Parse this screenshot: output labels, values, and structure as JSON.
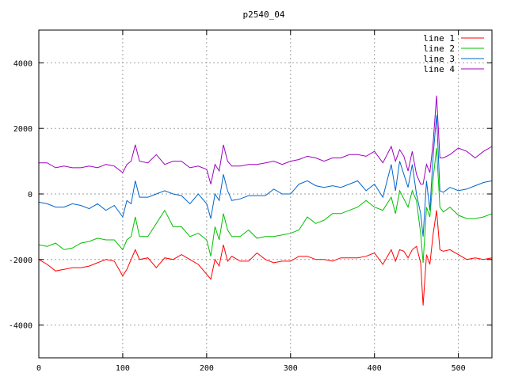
{
  "chart_data": {
    "type": "line",
    "title": "p2540_04",
    "xlabel": "",
    "ylabel": "",
    "xlim": [
      0,
      540
    ],
    "ylim": [
      -5000,
      5000
    ],
    "xticks": [
      0,
      100,
      200,
      300,
      400,
      500
    ],
    "yticks": [
      -4000,
      -2000,
      0,
      2000,
      4000
    ],
    "grid": true,
    "legend_position": "top-right",
    "x": [
      0,
      10,
      20,
      30,
      40,
      50,
      60,
      70,
      80,
      90,
      100,
      105,
      110,
      115,
      120,
      130,
      140,
      150,
      160,
      170,
      180,
      190,
      200,
      205,
      210,
      215,
      220,
      225,
      230,
      240,
      250,
      260,
      270,
      280,
      290,
      300,
      310,
      320,
      330,
      340,
      350,
      360,
      370,
      380,
      390,
      400,
      410,
      420,
      425,
      430,
      435,
      440,
      445,
      450,
      455,
      458,
      462,
      466,
      470,
      474,
      478,
      482,
      490,
      500,
      510,
      520,
      530,
      540
    ],
    "series": [
      {
        "name": "line 1",
        "color": "#ff0000",
        "values": [
          -2000,
          -2150,
          -2350,
          -2300,
          -2250,
          -2250,
          -2200,
          -2100,
          -2000,
          -2050,
          -2500,
          -2300,
          -2000,
          -1700,
          -2000,
          -1950,
          -2250,
          -1950,
          -2000,
          -1850,
          -2000,
          -2150,
          -2450,
          -2600,
          -2000,
          -2200,
          -1550,
          -2050,
          -1900,
          -2050,
          -2050,
          -1800,
          -2000,
          -2100,
          -2050,
          -2050,
          -1900,
          -1900,
          -2000,
          -2000,
          -2050,
          -1950,
          -1950,
          -1950,
          -1900,
          -1800,
          -2150,
          -1700,
          -2050,
          -1700,
          -1750,
          -1950,
          -1700,
          -1600,
          -2100,
          -3400,
          -1850,
          -2150,
          -1200,
          -500,
          -1700,
          -1750,
          -1700,
          -1850,
          -2000,
          -1950,
          -2000,
          -1950
        ]
      },
      {
        "name": "line 2",
        "color": "#00c000",
        "values": [
          -1550,
          -1600,
          -1500,
          -1700,
          -1650,
          -1500,
          -1450,
          -1350,
          -1400,
          -1400,
          -1700,
          -1400,
          -1300,
          -700,
          -1300,
          -1300,
          -900,
          -500,
          -1000,
          -1000,
          -1300,
          -1200,
          -1400,
          -1900,
          -1000,
          -1400,
          -600,
          -1100,
          -1300,
          -1300,
          -1100,
          -1350,
          -1300,
          -1300,
          -1250,
          -1200,
          -1100,
          -700,
          -900,
          -800,
          -600,
          -600,
          -500,
          -400,
          -200,
          -400,
          -500,
          -100,
          -600,
          100,
          -150,
          -400,
          100,
          -200,
          -1200,
          -2100,
          -400,
          -700,
          500,
          1400,
          -400,
          -550,
          -400,
          -650,
          -750,
          -750,
          -700,
          -600
        ]
      },
      {
        "name": "line 3",
        "color": "#0066cc",
        "values": [
          -250,
          -300,
          -400,
          -400,
          -300,
          -350,
          -450,
          -300,
          -500,
          -350,
          -700,
          -200,
          -300,
          400,
          -100,
          -100,
          0,
          100,
          0,
          -50,
          -300,
          0,
          -300,
          -750,
          0,
          -200,
          600,
          100,
          -200,
          -150,
          -50,
          -50,
          -50,
          150,
          0,
          0,
          300,
          400,
          250,
          200,
          250,
          200,
          300,
          400,
          100,
          300,
          -100,
          900,
          100,
          1000,
          600,
          200,
          900,
          0,
          -600,
          -1300,
          400,
          -500,
          1200,
          2400,
          100,
          50,
          200,
          100,
          150,
          250,
          350,
          400
        ]
      },
      {
        "name": "line 4",
        "color": "#a000c0",
        "values": [
          950,
          950,
          800,
          850,
          800,
          800,
          850,
          800,
          900,
          850,
          650,
          900,
          1000,
          1500,
          1000,
          950,
          1200,
          900,
          1000,
          1000,
          800,
          850,
          750,
          300,
          900,
          700,
          1500,
          1000,
          850,
          850,
          900,
          900,
          950,
          1000,
          900,
          1000,
          1050,
          1150,
          1100,
          1000,
          1100,
          1100,
          1200,
          1200,
          1150,
          1300,
          950,
          1450,
          1000,
          1350,
          1150,
          700,
          1300,
          600,
          300,
          300,
          900,
          650,
          1600,
          3000,
          1100,
          1100,
          1200,
          1400,
          1300,
          1100,
          1300,
          1450
        ]
      }
    ]
  }
}
